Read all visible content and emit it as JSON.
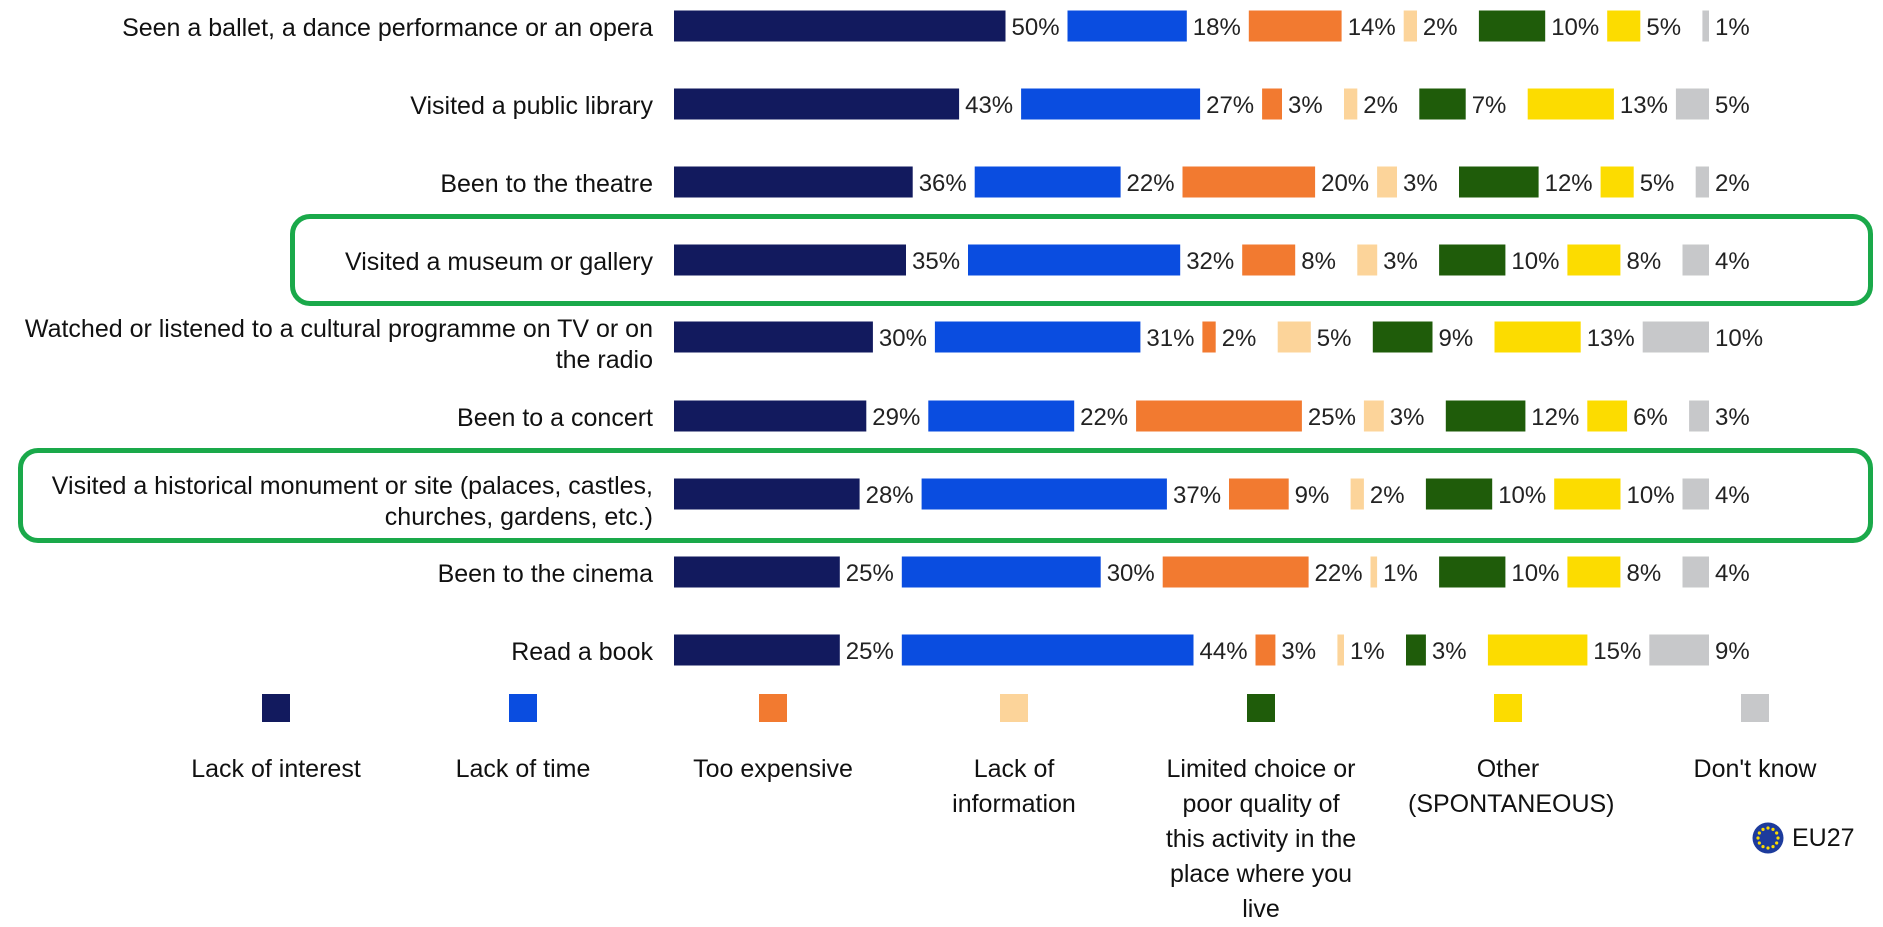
{
  "chart_data": {
    "type": "bar",
    "stacked": true,
    "orientation": "horizontal",
    "categories": [
      "Seen a ballet, a dance performance or an opera",
      "Visited a public library",
      "Been to the theatre",
      "Visited a museum or gallery",
      "Watched or listened to a cultural programme on TV or on the radio",
      "Been to a concert",
      "Visited a historical monument or site (palaces, castles, churches, gardens, etc.)",
      "Been to the cinema",
      "Read a book"
    ],
    "series": [
      {
        "name": "Lack of interest",
        "color": "#121a5e",
        "values": [
          50,
          43,
          36,
          35,
          30,
          29,
          28,
          25,
          25
        ]
      },
      {
        "name": "Lack of time",
        "color": "#0a4de0",
        "values": [
          18,
          27,
          22,
          32,
          31,
          22,
          37,
          30,
          44
        ]
      },
      {
        "name": "Too expensive",
        "color": "#f27a30",
        "values": [
          14,
          3,
          20,
          8,
          2,
          25,
          9,
          22,
          3
        ]
      },
      {
        "name": "Lack of information",
        "color": "#fcd49a",
        "values": [
          2,
          2,
          3,
          3,
          5,
          3,
          2,
          1,
          1
        ]
      },
      {
        "name": "Limited choice or poor quality of this activity in the place where you live",
        "color": "#1f5c0a",
        "values": [
          10,
          7,
          12,
          10,
          9,
          12,
          10,
          10,
          3
        ]
      },
      {
        "name": "Other (SPONTANEOUS)",
        "color": "#fcdc00",
        "values": [
          5,
          13,
          5,
          8,
          13,
          6,
          10,
          8,
          15
        ]
      },
      {
        "name": "Don't know",
        "color": "#c7c8ca",
        "values": [
          1,
          5,
          2,
          4,
          10,
          3,
          4,
          4,
          9
        ]
      }
    ],
    "value_suffix": "%",
    "highlighted_categories": [
      3,
      6
    ],
    "highlight_color": "#1aa94a",
    "legend_position": "bottom",
    "badge": "EU27"
  }
}
